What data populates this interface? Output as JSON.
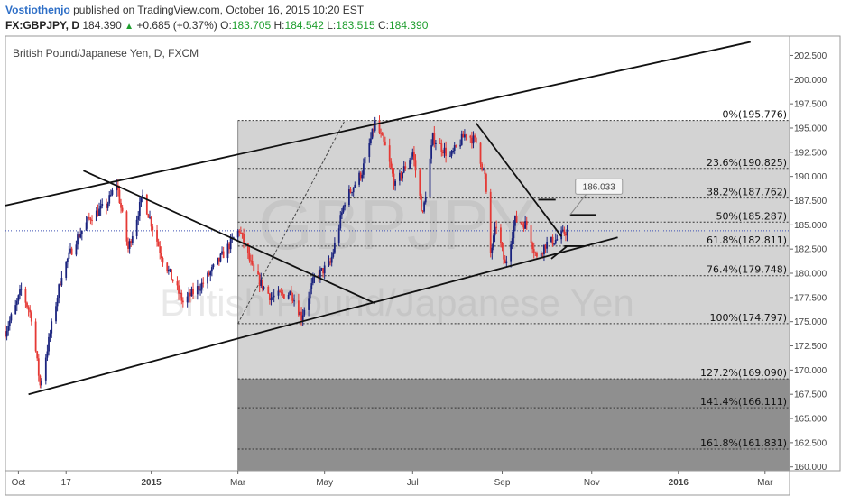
{
  "header": {
    "author": "Vostiothenjo",
    "published": "published on TradingView.com, October 16, 2015 10:20 EST",
    "symbol": "FX:GBPJPY, D",
    "last": "184.390",
    "change": "+0.685 (+0.37%)",
    "o_label": "O:",
    "o_value": "183.705",
    "h_label": "H:",
    "h_value": "184.542",
    "l_label": "L:",
    "l_value": "183.515",
    "c_label": "C:",
    "c_value": "184.390",
    "change_icon": "triangle-up-icon"
  },
  "colors": {
    "up_candle": "#1a237e",
    "down_candle": "#e53935",
    "author": "#2e6fc7",
    "ohlc_values": "#1e9e2e",
    "last_price_line": "#3f51b5",
    "fib_light_zone": "#d3d3d3",
    "fib_dark_zone": "#8f8f8f"
  },
  "chart_data": {
    "type": "candlestick",
    "title": "British Pound/Japanese Yen, D, FXCM",
    "watermark": [
      "GBPJPY",
      "British Pound/Japanese Yen"
    ],
    "y_ticks": [
      160.0,
      162.5,
      165.0,
      167.5,
      170.0,
      172.5,
      175.0,
      177.5,
      180.0,
      182.5,
      185.0,
      187.5,
      190.0,
      192.5,
      195.0,
      197.5,
      200.0,
      202.5
    ],
    "y_tick_labels": [
      "160.000",
      "162.500",
      "165.000",
      "167.500",
      "170.000",
      "172.500",
      "175.000",
      "177.500",
      "180.000",
      "182.500",
      "185.000",
      "187.500",
      "190.000",
      "192.500",
      "195.000",
      "197.500",
      "200.000",
      "202.500"
    ],
    "ylim": [
      159.6,
      204.5
    ],
    "x_range": [
      "2014-09-22",
      "2016-03-18"
    ],
    "x_ticks": [
      {
        "label": "Oct",
        "date": "2014-10-01"
      },
      {
        "label": "17",
        "date": "2014-11-03"
      },
      {
        "label": "2015",
        "date": "2015-01-01"
      },
      {
        "label": "Mar",
        "date": "2015-03-02"
      },
      {
        "label": "May",
        "date": "2015-05-01"
      },
      {
        "label": "Jul",
        "date": "2015-07-01"
      },
      {
        "label": "Sep",
        "date": "2015-09-01"
      },
      {
        "label": "Nov",
        "date": "2015-11-02"
      },
      {
        "label": "2016",
        "date": "2016-01-01"
      },
      {
        "label": "Mar",
        "date": "2016-03-01"
      }
    ],
    "last_price": 184.39,
    "price_path": [
      {
        "date": "2014-09-22",
        "price": 174.0
      },
      {
        "date": "2014-09-29",
        "price": 176.5
      },
      {
        "date": "2014-10-03",
        "price": 178.3
      },
      {
        "date": "2014-10-10",
        "price": 175.5
      },
      {
        "date": "2014-10-16",
        "price": 168.4
      },
      {
        "date": "2014-10-22",
        "price": 173.0
      },
      {
        "date": "2014-10-31",
        "price": 180.0
      },
      {
        "date": "2014-11-10",
        "price": 183.5
      },
      {
        "date": "2014-11-20",
        "price": 185.8
      },
      {
        "date": "2014-12-01",
        "price": 187.0
      },
      {
        "date": "2014-12-08",
        "price": 189.3
      },
      {
        "date": "2014-12-16",
        "price": 182.5
      },
      {
        "date": "2014-12-26",
        "price": 188.0
      },
      {
        "date": "2015-01-09",
        "price": 181.5
      },
      {
        "date": "2015-01-23",
        "price": 177.0
      },
      {
        "date": "2015-02-06",
        "price": 179.0
      },
      {
        "date": "2015-02-20",
        "price": 182.0
      },
      {
        "date": "2015-03-03",
        "price": 184.5
      },
      {
        "date": "2015-03-13",
        "price": 180.0
      },
      {
        "date": "2015-03-25",
        "price": 177.5
      },
      {
        "date": "2015-04-08",
        "price": 178.0
      },
      {
        "date": "2015-04-15",
        "price": 175.5
      },
      {
        "date": "2015-04-24",
        "price": 179.5
      },
      {
        "date": "2015-05-05",
        "price": 181.0
      },
      {
        "date": "2015-05-15",
        "price": 187.5
      },
      {
        "date": "2015-05-27",
        "price": 190.5
      },
      {
        "date": "2015-06-05",
        "price": 195.5
      },
      {
        "date": "2015-06-12",
        "price": 193.0
      },
      {
        "date": "2015-06-19",
        "price": 189.0
      },
      {
        "date": "2015-07-01",
        "price": 192.5
      },
      {
        "date": "2015-07-08",
        "price": 186.0
      },
      {
        "date": "2015-07-15",
        "price": 194.0
      },
      {
        "date": "2015-07-27",
        "price": 192.0
      },
      {
        "date": "2015-08-07",
        "price": 194.5
      },
      {
        "date": "2015-08-14",
        "price": 193.5
      },
      {
        "date": "2015-08-20",
        "price": 190.0
      },
      {
        "date": "2015-08-24",
        "price": 182.0
      },
      {
        "date": "2015-08-28",
        "price": 185.0
      },
      {
        "date": "2015-09-03",
        "price": 180.8
      },
      {
        "date": "2015-09-10",
        "price": 185.5
      },
      {
        "date": "2015-09-18",
        "price": 185.0
      },
      {
        "date": "2015-09-25",
        "price": 181.5
      },
      {
        "date": "2015-10-01",
        "price": 183.0
      },
      {
        "date": "2015-10-09",
        "price": 183.5
      },
      {
        "date": "2015-10-16",
        "price": 184.4
      }
    ],
    "annotations": {
      "price_label": "186.033",
      "fib_levels": [
        {
          "ratio_label": "0%",
          "price": 195.776,
          "text": "0%(195.776)"
        },
        {
          "ratio_label": "23.6%",
          "price": 190.825,
          "text": "23.6%(190.825)"
        },
        {
          "ratio_label": "38.2%",
          "price": 187.762,
          "text": "38.2%(187.762)"
        },
        {
          "ratio_label": "50%",
          "price": 185.287,
          "text": "50%(185.287)"
        },
        {
          "ratio_label": "61.8%",
          "price": 182.811,
          "text": "61.8%(182.811)"
        },
        {
          "ratio_label": "76.4%",
          "price": 179.748,
          "text": "76.4%(179.748)"
        },
        {
          "ratio_label": "100%",
          "price": 174.797,
          "text": "100%(174.797)"
        },
        {
          "ratio_label": "127.2%",
          "price": 169.09,
          "text": "127.2%(169.090)"
        },
        {
          "ratio_label": "141.4%",
          "price": 166.111,
          "text": "141.4%(166.111)"
        },
        {
          "ratio_label": "161.8%",
          "price": 161.831,
          "text": "161.8%(161.831)"
        }
      ],
      "fib_range": {
        "start": "2015-03-02",
        "end": "2015-11-15"
      },
      "fib_anchor_line": [
        {
          "date": "2015-03-02",
          "price": 174.797
        },
        {
          "date": "2015-05-15",
          "price": 195.776
        }
      ],
      "trend_lines": [
        {
          "name": "channel-top",
          "points": [
            {
              "date": "2014-09-22",
              "price": 187.0
            },
            {
              "date": "2016-02-20",
              "price": 203.9
            }
          ]
        },
        {
          "name": "channel-bottom",
          "points": [
            {
              "date": "2014-10-08",
              "price": 167.5
            },
            {
              "date": "2015-11-20",
              "price": 183.7
            }
          ]
        },
        {
          "name": "descending-trendline",
          "points": [
            {
              "date": "2014-11-15",
              "price": 190.6
            },
            {
              "date": "2015-06-05",
              "price": 176.9
            }
          ]
        },
        {
          "name": "upper-resistance-line",
          "points": [
            {
              "date": "2015-08-14",
              "price": 195.5
            },
            {
              "date": "2015-10-12",
              "price": 183.8
            }
          ]
        },
        {
          "name": "triangle-support",
          "points": [
            {
              "date": "2015-10-05",
              "price": 181.5
            },
            {
              "date": "2015-10-16",
              "price": 182.8
            }
          ]
        },
        {
          "name": "target-line",
          "points": [
            {
              "date": "2015-10-18",
              "price": 186.033
            },
            {
              "date": "2015-11-05",
              "price": 186.033
            }
          ]
        },
        {
          "name": "resistance-stub",
          "points": [
            {
              "date": "2015-09-26",
              "price": 187.6
            },
            {
              "date": "2015-10-08",
              "price": 187.6
            }
          ]
        },
        {
          "name": "support-stub",
          "points": [
            {
              "date": "2015-10-14",
              "price": 182.8
            },
            {
              "date": "2015-10-28",
              "price": 182.8
            }
          ]
        }
      ]
    }
  }
}
